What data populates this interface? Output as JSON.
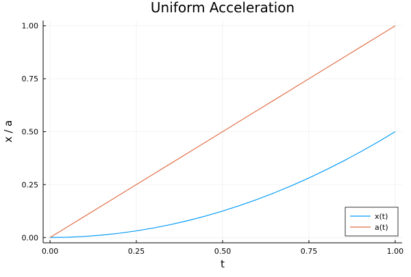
{
  "chart_data": {
    "type": "line",
    "title": "Uniform Acceleration",
    "xlabel": "t",
    "ylabel": "x / a",
    "xlim": [
      -0.02,
      1.02
    ],
    "ylim": [
      -0.025,
      1.025
    ],
    "xticks": [
      0,
      0.25,
      0.5,
      0.75,
      1.0
    ],
    "xtick_labels": [
      "0.00",
      "0.25",
      "0.50",
      "0.75",
      "1.00"
    ],
    "yticks": [
      0,
      0.25,
      0.5,
      0.75,
      1.0
    ],
    "ytick_labels": [
      "0.00",
      "0.25",
      "0.50",
      "0.75",
      "1.00"
    ],
    "grid": true,
    "legend_position": "bottom-right",
    "x": [
      0,
      0.05,
      0.1,
      0.15,
      0.2,
      0.25,
      0.3,
      0.35,
      0.4,
      0.45,
      0.5,
      0.55,
      0.6,
      0.65,
      0.7,
      0.75,
      0.8,
      0.85,
      0.9,
      0.95,
      1.0
    ],
    "series": [
      {
        "name": "x(t)",
        "color": "#009af9",
        "values": [
          0,
          0.00125,
          0.005,
          0.01125,
          0.02,
          0.03125,
          0.045,
          0.06125,
          0.08,
          0.10125,
          0.125,
          0.15125,
          0.18,
          0.21125,
          0.245,
          0.28125,
          0.32,
          0.36125,
          0.405,
          0.45125,
          0.5
        ]
      },
      {
        "name": "a(t)",
        "color": "#e26f46",
        "values": [
          0,
          0.05,
          0.1,
          0.15,
          0.2,
          0.25,
          0.3,
          0.35,
          0.4,
          0.45,
          0.5,
          0.55,
          0.6,
          0.65,
          0.7,
          0.75,
          0.8,
          0.85,
          0.9,
          0.95,
          1.0
        ]
      }
    ]
  }
}
